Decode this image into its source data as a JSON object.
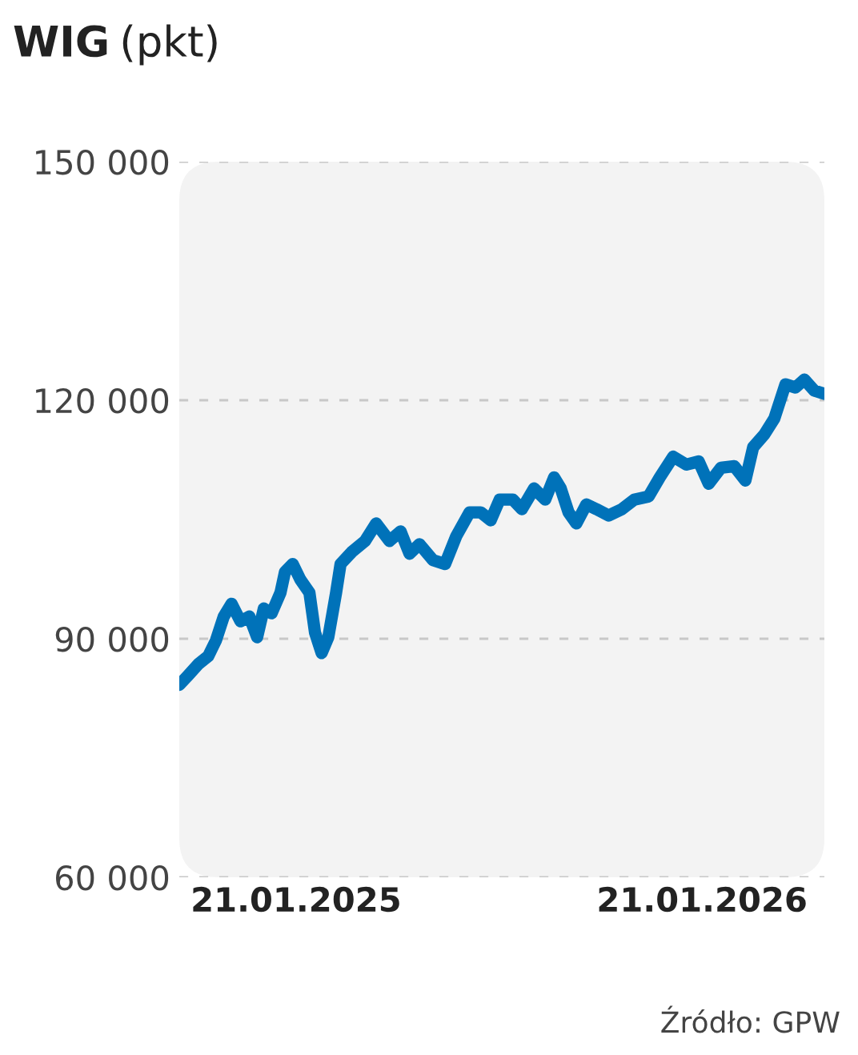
{
  "chart_data": {
    "type": "line",
    "title": "WIG",
    "subtitle": "(pkt)",
    "annotations": [
      "Źródło: GPW"
    ],
    "x": [
      "2024-10-08",
      "2024-10-16",
      "2024-10-25",
      "2024-11-03",
      "2024-11-10",
      "2024-11-17",
      "2024-11-24",
      "2024-12-02",
      "2024-12-10",
      "2024-12-17",
      "2024-12-23",
      "2024-12-30",
      "2025-01-07",
      "2025-01-11",
      "2025-01-18",
      "2025-01-25",
      "2025-02-02",
      "2025-02-07",
      "2025-02-13",
      "2025-02-19",
      "2025-02-26",
      "2025-03-02",
      "2025-03-12",
      "2025-03-24",
      "2025-04-03",
      "2025-04-15",
      "2025-04-25",
      "2025-05-03",
      "2025-05-12",
      "2025-05-24",
      "2025-06-04",
      "2025-06-14",
      "2025-06-26",
      "2025-07-06",
      "2025-07-15",
      "2025-07-23",
      "2025-08-04",
      "2025-08-12",
      "2025-08-23",
      "2025-09-02",
      "2025-09-10",
      "2025-09-16",
      "2025-09-23",
      "2025-09-30",
      "2025-10-09",
      "2025-10-18",
      "2025-10-29",
      "2025-11-10",
      "2025-11-21",
      "2025-12-04",
      "2025-12-14",
      "2025-12-26",
      "2026-01-07",
      "2026-01-18",
      "2026-01-27",
      "2026-02-07",
      "2026-02-19",
      "2026-03-01",
      "2026-03-08",
      "2026-03-18",
      "2026-03-27",
      "2026-04-06",
      "2026-04-15",
      "2026-04-23",
      "2026-05-02",
      "2026-05-11"
    ],
    "series": [
      {
        "color": "#0072b9",
        "values": [
          84200,
          85400,
          86800,
          87800,
          89800,
          92800,
          94400,
          92200,
          92800,
          90200,
          93800,
          93200,
          95800,
          98400,
          99400,
          97400,
          95800,
          90800,
          88200,
          90200,
          95800,
          99400,
          100900,
          102300,
          104500,
          102300,
          103500,
          100700,
          101900,
          99900,
          99400,
          102900,
          105900,
          105900,
          104900,
          107500,
          107500,
          106300,
          108900,
          107500,
          110300,
          108900,
          105900,
          104500,
          106900,
          106300,
          105500,
          106300,
          107500,
          107900,
          110300,
          112900,
          111900,
          112300,
          109500,
          111500,
          111700,
          109900,
          114100,
          115700,
          117700,
          122000,
          121600,
          122600,
          121200,
          120800
        ]
      }
    ],
    "xlim": [
      "2024-10-08",
      "2026-05-11"
    ],
    "xticks": [
      {
        "value": "2025-01-21",
        "label": "21.01.2025"
      },
      {
        "value": "2026-01-21",
        "label": "21.01.2026"
      }
    ],
    "ylim": [
      60000,
      150000
    ],
    "yticks": [
      {
        "value": 60000,
        "label": "60 000"
      },
      {
        "value": 90000,
        "label": "90 000"
      },
      {
        "value": 120000,
        "label": "120 000"
      },
      {
        "value": 150000,
        "label": "150 000"
      }
    ],
    "grid": "y",
    "line_style": "solid",
    "marker": "none",
    "legend": false
  }
}
